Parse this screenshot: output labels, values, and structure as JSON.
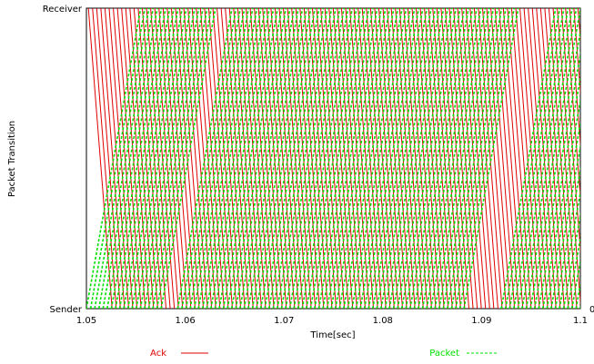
{
  "chart_data": {
    "type": "line",
    "xlabel": "Time[sec]",
    "ylabel": "Packet Transition",
    "xlim": [
      1.05,
      1.1
    ],
    "x_ticks": [
      "1.05",
      "1.06",
      "1.07",
      "1.08",
      "1.09",
      "1.1"
    ],
    "y_ticks": [
      "Sender",
      "Receiver"
    ],
    "corner_label": "0",
    "grid": false,
    "legend_position": "bottom",
    "series": [
      {
        "name": "Ack",
        "color": "#e00000",
        "style": "solid",
        "description_direction": "receiver-to-sender",
        "send_times_start": 1.0502,
        "send_interval": 0.00042,
        "transit_time": 0.0024
      },
      {
        "name": "Packet",
        "color": "#00e000",
        "style": "dashed",
        "description_direction": "sender-to-receiver",
        "send_times_start": 1.05,
        "send_interval": 0.00042,
        "transit_time": 0.0055,
        "gaps": [
          [
            1.0576,
            1.059
          ],
          [
            1.0883,
            1.0918
          ]
        ]
      }
    ]
  }
}
